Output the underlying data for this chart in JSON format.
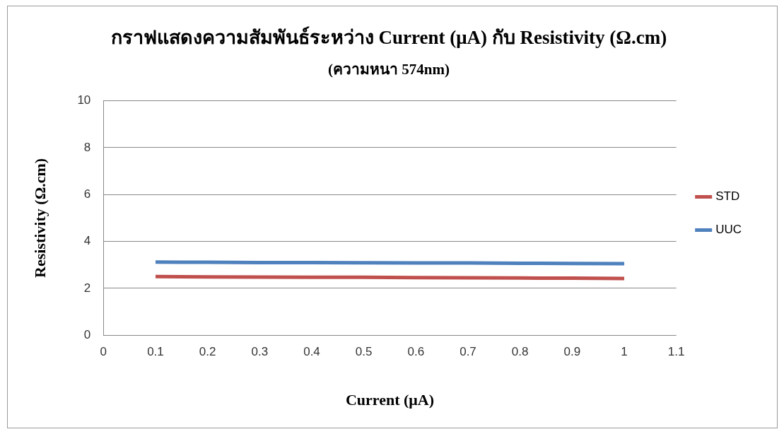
{
  "chart_data": {
    "type": "line",
    "title": "กราฟแสดงความสัมพันธ์ระหว่าง Current (μA) กับ Resistivity (Ω.cm)",
    "subtitle": "(ความหนา 574nm)",
    "xlabel": "Current (μA)",
    "ylabel": "Resistivity (Ω.cm)",
    "x": [
      0.1,
      0.2,
      0.3,
      0.4,
      0.5,
      0.6,
      0.7,
      0.8,
      0.9,
      1
    ],
    "series": [
      {
        "name": "STD",
        "color": "#c0504d",
        "values": [
          2.5,
          2.49,
          2.48,
          2.47,
          2.47,
          2.46,
          2.45,
          2.44,
          2.43,
          2.42
        ]
      },
      {
        "name": "UUC",
        "color": "#4f81bd",
        "values": [
          3.12,
          3.11,
          3.1,
          3.1,
          3.09,
          3.08,
          3.08,
          3.07,
          3.06,
          3.05
        ]
      }
    ],
    "xlim": [
      0,
      1.1
    ],
    "xticks": [
      0,
      0.1,
      0.2,
      0.3,
      0.4,
      0.5,
      0.6,
      0.7,
      0.8,
      0.9,
      1,
      1.1
    ],
    "ylim": [
      0,
      10
    ],
    "yticks": [
      0,
      2,
      4,
      6,
      8,
      10
    ],
    "grid": "y",
    "legend": "right",
    "marker": "none",
    "line_style": "solid"
  }
}
